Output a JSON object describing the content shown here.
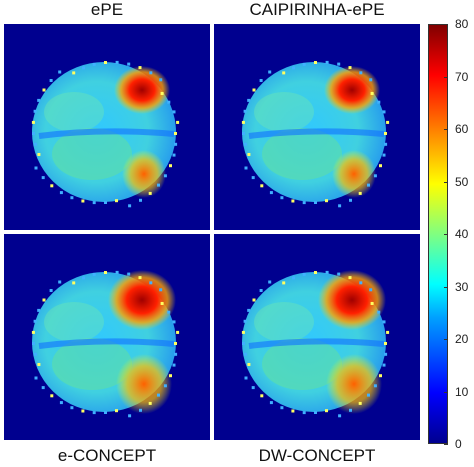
{
  "panels": {
    "top_left": "ePE",
    "top_right": "CAIPIRINHA-ePE",
    "bottom_left": "e-CONCEPT",
    "bottom_right": "DW-CONCEPT"
  },
  "colorbar": {
    "ticks": [
      "80",
      "70",
      "60",
      "50",
      "40",
      "30",
      "20",
      "10",
      "0"
    ],
    "colors": [
      "#00008f",
      "#0000ff",
      "#00a0ff",
      "#00ffff",
      "#80ff80",
      "#ffff00",
      "#ff8000",
      "#ff0000",
      "#800000"
    ]
  }
}
